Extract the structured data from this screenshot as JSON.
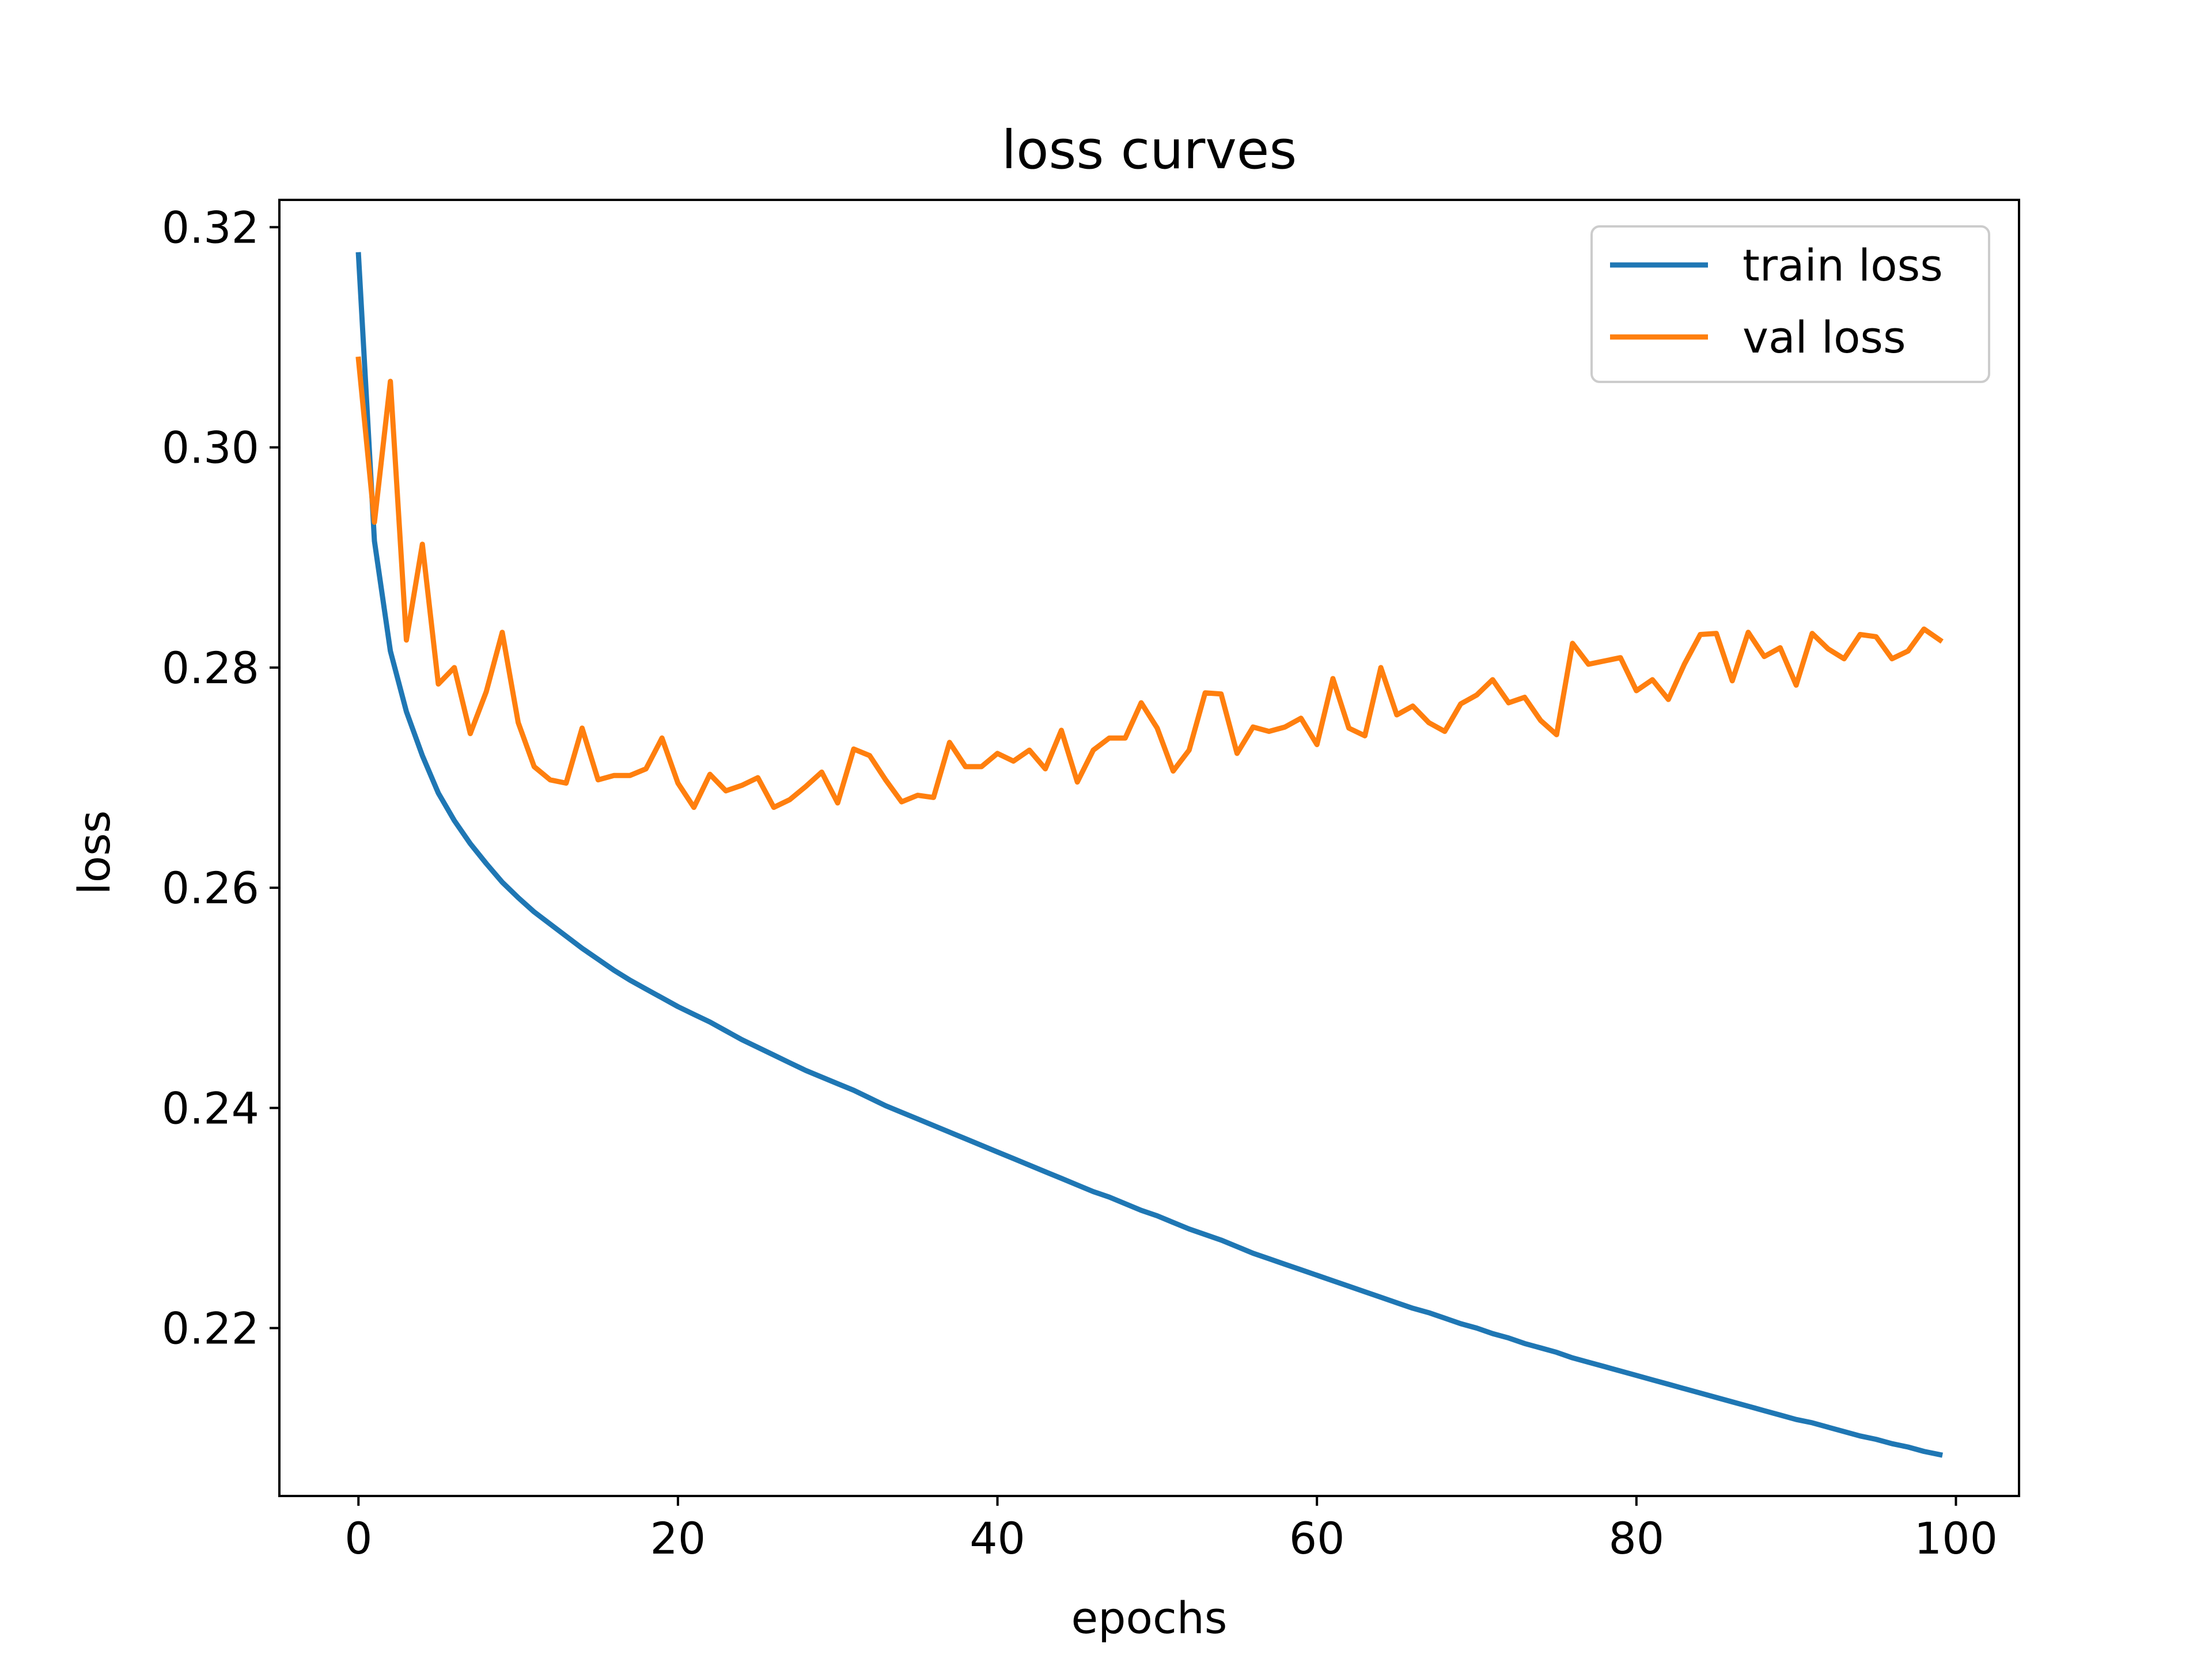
{
  "chart_data": {
    "type": "line",
    "title": "loss curves",
    "xlabel": "epochs",
    "ylabel": "loss",
    "xlim": [
      -4.95,
      103.95
    ],
    "ylim": [
      0.20475,
      0.32248
    ],
    "xticks": [
      0,
      20,
      40,
      60,
      80,
      100
    ],
    "xtick_labels": [
      "0",
      "20",
      "40",
      "60",
      "80",
      "100"
    ],
    "yticks": [
      0.22,
      0.24,
      0.26,
      0.28,
      0.3,
      0.32
    ],
    "ytick_labels": [
      "0.22",
      "0.24",
      "0.26",
      "0.28",
      "0.30",
      "0.32"
    ],
    "grid": false,
    "legend_position": "top-right",
    "series": [
      {
        "name": "train loss",
        "color": "#1f77b4",
        "x": [
          0,
          1,
          2,
          3,
          4,
          5,
          6,
          7,
          8,
          9,
          10,
          11,
          12,
          13,
          14,
          15,
          16,
          17,
          18,
          19,
          20,
          21,
          22,
          23,
          24,
          25,
          26,
          27,
          28,
          29,
          30,
          31,
          32,
          33,
          34,
          35,
          36,
          37,
          38,
          39,
          40,
          41,
          42,
          43,
          44,
          45,
          46,
          47,
          48,
          49,
          50,
          51,
          52,
          53,
          54,
          55,
          56,
          57,
          58,
          59,
          60,
          61,
          62,
          63,
          64,
          65,
          66,
          67,
          68,
          69,
          70,
          71,
          72,
          73,
          74,
          75,
          76,
          77,
          78,
          79,
          80,
          81,
          82,
          83,
          84,
          85,
          86,
          87,
          88,
          89,
          90,
          91,
          92,
          93,
          94,
          95,
          96,
          97,
          98,
          99
        ],
        "values": [
          0.3175,
          0.2915,
          0.2815,
          0.276,
          0.272,
          0.2686,
          0.2661,
          0.264,
          0.2622,
          0.2605,
          0.2591,
          0.2578,
          0.2567,
          0.2556,
          0.2545,
          0.2535,
          0.2525,
          0.2516,
          0.2508,
          0.25,
          0.2492,
          0.2485,
          0.2478,
          0.247,
          0.2462,
          0.2455,
          0.2448,
          0.2441,
          0.2434,
          0.2428,
          0.2422,
          0.2416,
          0.2409,
          0.2402,
          0.2396,
          0.239,
          0.2384,
          0.2378,
          0.2372,
          0.2366,
          0.236,
          0.2354,
          0.2348,
          0.2342,
          0.2336,
          0.233,
          0.2324,
          0.2319,
          0.2313,
          0.2307,
          0.2302,
          0.2296,
          0.229,
          0.2285,
          0.228,
          0.2274,
          0.2268,
          0.2263,
          0.2258,
          0.2253,
          0.2248,
          0.2243,
          0.2238,
          0.2233,
          0.2228,
          0.2223,
          0.2218,
          0.2214,
          0.2209,
          0.2204,
          0.22,
          0.2195,
          0.2191,
          0.2186,
          0.2182,
          0.2178,
          0.2173,
          0.2169,
          0.2165,
          0.2161,
          0.2157,
          0.2153,
          0.2149,
          0.2145,
          0.2141,
          0.2137,
          0.2133,
          0.2129,
          0.2125,
          0.2121,
          0.2117,
          0.2114,
          0.211,
          0.2106,
          0.2102,
          0.2099,
          0.2095,
          0.2092,
          0.2088,
          0.2085
        ]
      },
      {
        "name": "val loss",
        "color": "#ff7f0e",
        "x": [
          0,
          1,
          2,
          3,
          4,
          5,
          6,
          7,
          8,
          9,
          10,
          11,
          12,
          13,
          14,
          15,
          16,
          17,
          18,
          19,
          20,
          21,
          22,
          23,
          24,
          25,
          26,
          27,
          28,
          29,
          30,
          31,
          32,
          33,
          34,
          35,
          36,
          37,
          38,
          39,
          40,
          41,
          42,
          43,
          44,
          45,
          46,
          47,
          48,
          49,
          50,
          51,
          52,
          53,
          54,
          55,
          56,
          57,
          58,
          59,
          60,
          61,
          62,
          63,
          64,
          65,
          66,
          67,
          68,
          69,
          70,
          71,
          72,
          73,
          74,
          75,
          76,
          77,
          78,
          79,
          80,
          81,
          82,
          83,
          84,
          85,
          86,
          87,
          88,
          89,
          90,
          91,
          92,
          93,
          94,
          95,
          96,
          97,
          98,
          99
        ],
        "values": [
          0.308,
          0.2932,
          0.306,
          0.2825,
          0.2912,
          0.2785,
          0.28,
          0.274,
          0.2778,
          0.2832,
          0.275,
          0.271,
          0.2698,
          0.2695,
          0.2745,
          0.2698,
          0.2702,
          0.2702,
          0.2708,
          0.2736,
          0.2695,
          0.2673,
          0.2703,
          0.2688,
          0.2693,
          0.27,
          0.2673,
          0.268,
          0.2692,
          0.2705,
          0.2677,
          0.2726,
          0.272,
          0.2698,
          0.2678,
          0.2684,
          0.2682,
          0.2732,
          0.271,
          0.271,
          0.2722,
          0.2715,
          0.2725,
          0.2708,
          0.2743,
          0.2696,
          0.2725,
          0.2736,
          0.2736,
          0.2768,
          0.2745,
          0.2706,
          0.2725,
          0.2777,
          0.2776,
          0.2722,
          0.2746,
          0.2742,
          0.2746,
          0.2754,
          0.273,
          0.279,
          0.2745,
          0.2738,
          0.28,
          0.2757,
          0.2765,
          0.275,
          0.2742,
          0.2767,
          0.2775,
          0.2789,
          0.2768,
          0.2773,
          0.2752,
          0.2739,
          0.2822,
          0.2803,
          0.2806,
          0.2809,
          0.2779,
          0.2789,
          0.2771,
          0.2803,
          0.283,
          0.2831,
          0.2788,
          0.2832,
          0.281,
          0.2818,
          0.2784,
          0.2831,
          0.2817,
          0.2808,
          0.283,
          0.2828,
          0.2808,
          0.2815,
          0.2835,
          0.2825
        ]
      }
    ]
  }
}
